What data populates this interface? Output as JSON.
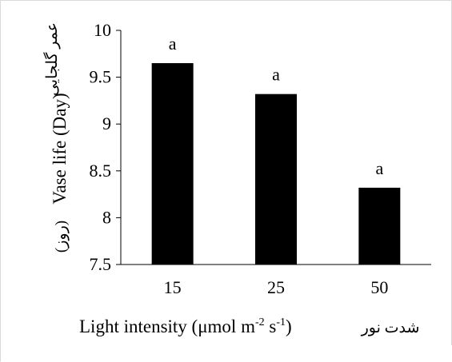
{
  "chart_data": {
    "type": "bar",
    "categories": [
      "15",
      "25",
      "50"
    ],
    "values": [
      9.65,
      9.32,
      8.32
    ],
    "bar_labels": [
      "a",
      "a",
      "a"
    ],
    "ylim": [
      7.5,
      10
    ],
    "y_ticks": [
      "7.5",
      "8",
      "8.5",
      "9",
      "9.5",
      "10"
    ],
    "y_tick_values": [
      7.5,
      8,
      8.5,
      9,
      9.5,
      10
    ],
    "ylabel": {
      "english": "Vase life (Day)",
      "farsi_main": "عمر گلجایی",
      "farsi_unit": "(روز)"
    },
    "xlabel": {
      "english_prefix": "Light intensity (μmol m",
      "sup1": "-2",
      "mid": " s",
      "sup2": "-1",
      "suffix": ")",
      "farsi": "شدت نور"
    },
    "bar_color": "#000000",
    "grid": false
  }
}
